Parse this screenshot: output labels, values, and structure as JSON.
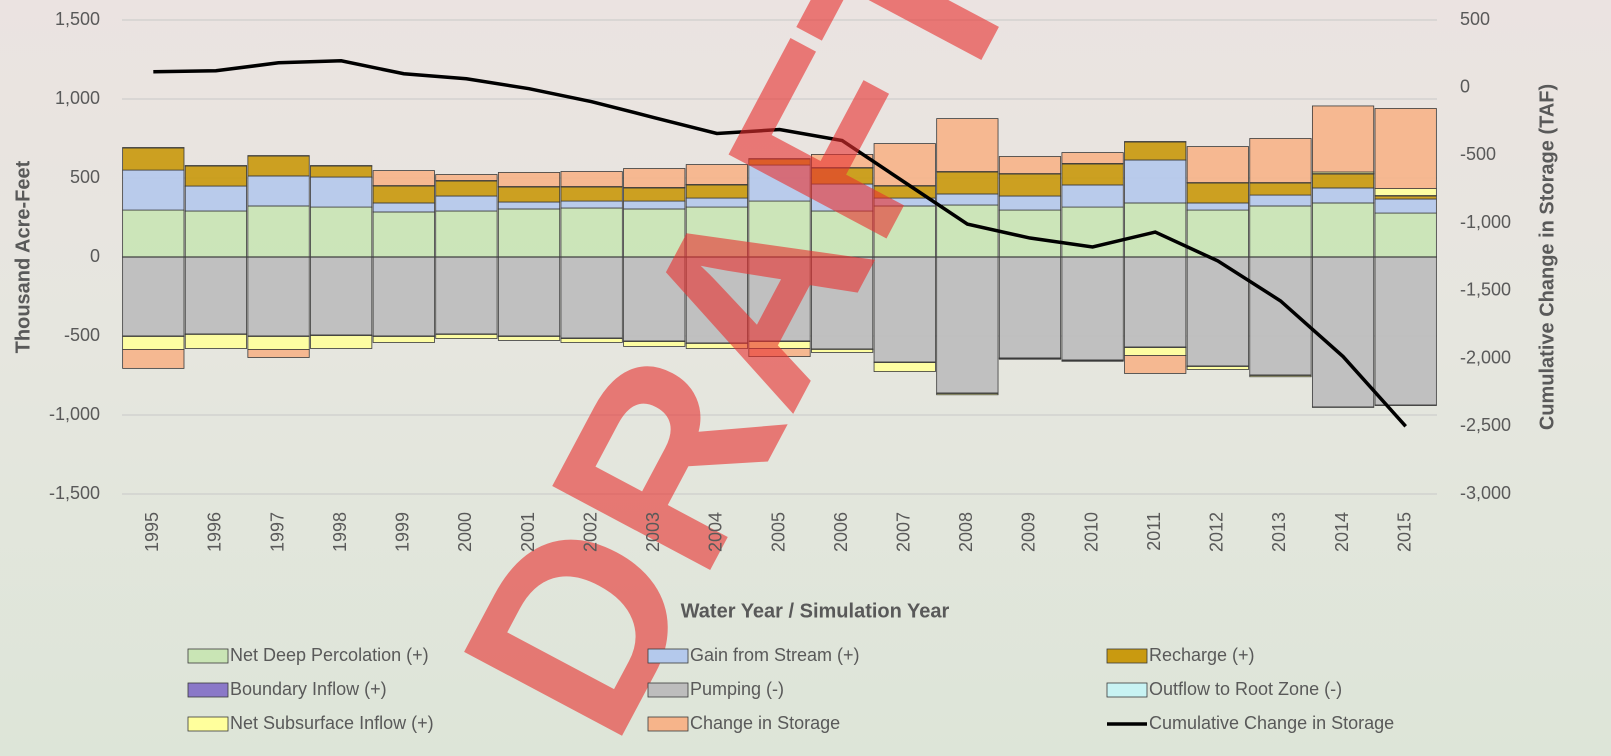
{
  "chart_data": {
    "type": "stacked_bar_line",
    "watermark": "DRAFT",
    "xlabel": "Water Year / Simulation Year",
    "ylabel": "Thousand Acre-Feet",
    "y2label": "Cumulative Change in Storage (TAF)",
    "categories": [
      "1995",
      "1996",
      "1997",
      "1998",
      "1999",
      "2000",
      "2001",
      "2002",
      "2003",
      "2004",
      "2005",
      "2006",
      "2007",
      "2008",
      "2009",
      "2010",
      "2011",
      "2012",
      "2013",
      "2014",
      "2015"
    ],
    "ylim": [
      -1500,
      1500
    ],
    "yticks": [
      {
        "value": 1500,
        "label": "1,500"
      },
      {
        "value": 1000,
        "label": "1,000"
      },
      500,
      0,
      -500,
      {
        "value": -1000,
        "label": "-1,000"
      },
      {
        "value": -1500,
        "label": "-1,500"
      }
    ],
    "y2lim": [
      -3000,
      500
    ],
    "y2ticks": [
      500,
      0,
      -500,
      {
        "value": -1000,
        "label": "-1,000"
      },
      {
        "value": -1500,
        "label": "-1,500"
      },
      {
        "value": -2000,
        "label": "-2,000"
      },
      {
        "value": -2500,
        "label": "-2,500"
      },
      {
        "value": -3000,
        "label": "-3,000"
      }
    ],
    "grid": true,
    "legend": "bottom",
    "series": [
      {
        "name": "Net Deep Percolation (+)",
        "color": "#c9e5b5",
        "values": [
          297,
          291,
          323,
          316,
          285,
          291,
          304,
          310,
          304,
          316,
          354,
          291,
          323,
          329,
          297,
          316,
          342,
          297,
          323,
          342,
          278
        ]
      },
      {
        "name": "Gain from Stream (+)",
        "color": "#b4c9ec",
        "values": [
          253,
          158,
          190,
          190,
          57,
          95,
          44,
          44,
          50,
          57,
          228,
          171,
          50,
          70,
          89,
          140,
          272,
          45,
          69,
          95,
          89
        ]
      },
      {
        "name": "Recharge (+)",
        "color": "#c99a10",
        "values": [
          140,
          127,
          126,
          70,
          107,
          95,
          95,
          89,
          83,
          83,
          38,
          101,
          76,
          139,
          139,
          133,
          114,
          126,
          76,
          88,
          19
        ]
      },
      {
        "name": "Boundary Inflow (+)",
        "color": "#8a78c8",
        "values": [
          3,
          3,
          3,
          3,
          3,
          3,
          3,
          3,
          3,
          3,
          3,
          3,
          3,
          3,
          3,
          3,
          3,
          3,
          3,
          3,
          3
        ]
      },
      {
        "name": "Pumping (-)",
        "color": "#bdbdbd",
        "values": [
          -500,
          -487,
          -500,
          -494,
          -500,
          -487,
          -500,
          -513,
          -532,
          -544,
          -532,
          -582,
          -665,
          -861,
          -639,
          -652,
          -570,
          -690,
          -747,
          -949,
          -937
        ]
      },
      {
        "name": "Outflow to Root Zone (-)",
        "color": "#c8f3f3",
        "values": [
          -3,
          -3,
          -3,
          -3,
          -3,
          -3,
          -3,
          -3,
          -3,
          -3,
          -3,
          -3,
          -3,
          -3,
          -3,
          -3,
          -3,
          -3,
          -3,
          -3,
          -3
        ]
      },
      {
        "name": "Net Subsurface Inflow (+)",
        "color": "#ffff9c",
        "values": [
          -82,
          -89,
          -82,
          -82,
          -38,
          -26,
          -25,
          -25,
          -31,
          -32,
          -44,
          -19,
          -57,
          -8,
          -5,
          -5,
          -50,
          -19,
          -8,
          10,
          44
        ]
      },
      {
        "name": "Change in Storage",
        "color": "#f6b48a",
        "values": [
          -120,
          0,
          -51,
          0,
          95,
          38,
          89,
          95,
          120,
          126,
          -51,
          83,
          266,
          335,
          108,
          69,
          -114,
          228,
          279,
          418,
          507
        ]
      },
      {
        "name": "Cumulative Change in Storage",
        "color": "#000000",
        "axis": "y2",
        "line": true,
        "values": [
          118,
          125,
          184,
          199,
          103,
          66,
          -7,
          -103,
          -221,
          -338,
          -309,
          -390,
          -699,
          -1007,
          -1110,
          -1176,
          -1066,
          -1279,
          -1574,
          -1985,
          -2500
        ]
      }
    ]
  }
}
